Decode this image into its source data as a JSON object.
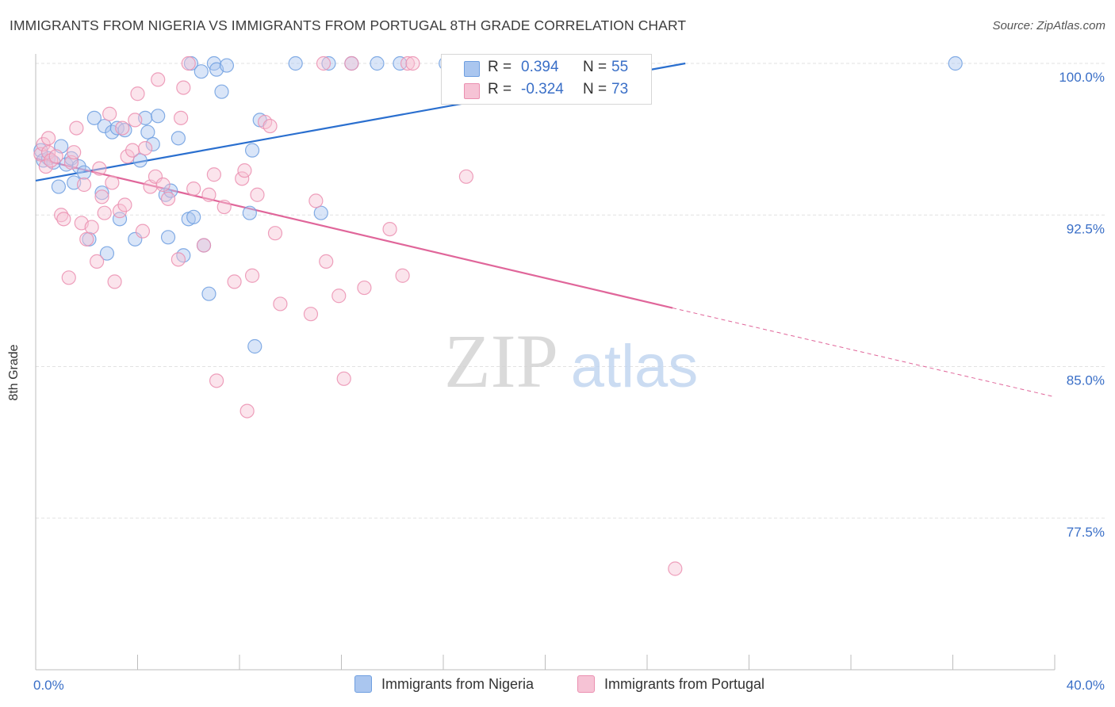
{
  "title": "IMMIGRANTS FROM NIGERIA VS IMMIGRANTS FROM PORTUGAL 8TH GRADE CORRELATION CHART",
  "source": "Source: ZipAtlas.com",
  "watermark": {
    "zip": "ZIP",
    "atlas": "atlas"
  },
  "legend": {
    "r_label": "R =",
    "n_label": "N =",
    "items": [
      {
        "r": "0.394",
        "n": "55"
      },
      {
        "r": "-0.324",
        "n": "73"
      }
    ]
  },
  "colors": {
    "nigeria": "#6f9fe0",
    "nigeria_fill": "#aac6ef",
    "nigeria_line": "#2a6fcf",
    "portugal": "#eb8fb0",
    "portugal_fill": "#f6c3d5",
    "portugal_line": "#e0669a",
    "tick_text": "#3a6fc7",
    "grid": "#e2e2e2"
  },
  "chart_data": {
    "type": "scatter",
    "title": "IMMIGRANTS FROM NIGERIA VS IMMIGRANTS FROM PORTUGAL 8TH GRADE CORRELATION CHART",
    "xlabel": "",
    "ylabel": "8th Grade",
    "xlim": [
      0,
      40
    ],
    "ylim": [
      70.5,
      101
    ],
    "x_tick_labels": [
      "0.0%",
      "40.0%"
    ],
    "y_ticks": [
      100.0,
      92.5,
      85.0,
      77.5
    ],
    "y_tick_labels": [
      "100.0%",
      "92.5%",
      "85.0%",
      "77.5%"
    ],
    "grid": true,
    "legend_position": "bottom",
    "series": [
      {
        "name": "Immigrants from Nigeria",
        "color": "#6f9fe0",
        "r": 0.394,
        "n": 55,
        "trend": {
          "x0": 0,
          "y0": 94.2,
          "x1": 25.5,
          "y1": 100.0
        },
        "points": [
          [
            0.2,
            95.7
          ],
          [
            0.3,
            95.2
          ],
          [
            0.5,
            95.3
          ],
          [
            0.7,
            95.1
          ],
          [
            0.9,
            93.9
          ],
          [
            1.0,
            95.9
          ],
          [
            1.2,
            95.0
          ],
          [
            1.4,
            95.3
          ],
          [
            1.5,
            94.1
          ],
          [
            1.7,
            94.9
          ],
          [
            1.9,
            94.6
          ],
          [
            2.1,
            91.3
          ],
          [
            2.3,
            97.3
          ],
          [
            2.6,
            93.6
          ],
          [
            2.7,
            96.9
          ],
          [
            2.8,
            90.6
          ],
          [
            3.0,
            96.6
          ],
          [
            3.2,
            96.8
          ],
          [
            3.3,
            92.3
          ],
          [
            3.5,
            96.7
          ],
          [
            3.9,
            91.3
          ],
          [
            4.1,
            95.2
          ],
          [
            4.3,
            97.3
          ],
          [
            4.4,
            96.6
          ],
          [
            4.6,
            96.0
          ],
          [
            4.8,
            97.4
          ],
          [
            5.1,
            93.5
          ],
          [
            5.2,
            91.4
          ],
          [
            5.3,
            93.7
          ],
          [
            5.6,
            96.3
          ],
          [
            5.8,
            90.5
          ],
          [
            6.0,
            92.3
          ],
          [
            6.1,
            100.0
          ],
          [
            6.2,
            92.4
          ],
          [
            6.5,
            99.6
          ],
          [
            6.6,
            91.0
          ],
          [
            6.8,
            88.6
          ],
          [
            7.0,
            100.0
          ],
          [
            7.1,
            99.7
          ],
          [
            7.3,
            98.6
          ],
          [
            7.5,
            99.9
          ],
          [
            8.4,
            92.6
          ],
          [
            8.6,
            86.0
          ],
          [
            8.8,
            97.2
          ],
          [
            8.5,
            95.7
          ],
          [
            10.2,
            100.0
          ],
          [
            11.2,
            92.6
          ],
          [
            11.5,
            100.0
          ],
          [
            12.4,
            100.0
          ],
          [
            13.4,
            100.0
          ],
          [
            14.3,
            100.0
          ],
          [
            16.1,
            100.0
          ],
          [
            17.9,
            100.0
          ],
          [
            16.8,
            100.0
          ],
          [
            36.1,
            100.0
          ]
        ]
      },
      {
        "name": "Immigrants from Portugal",
        "color": "#eb8fb0",
        "r": -0.324,
        "n": 73,
        "trend": {
          "x0": 0,
          "y0": 95.3,
          "x1": 25.0,
          "y1": 87.9
        },
        "trend_dashed": {
          "x0": 25.0,
          "y0": 87.9,
          "x1": 40.0,
          "y1": 83.5
        },
        "points": [
          [
            0.2,
            95.5
          ],
          [
            0.3,
            96.0
          ],
          [
            0.4,
            94.9
          ],
          [
            0.5,
            95.6
          ],
          [
            0.5,
            96.3
          ],
          [
            0.6,
            95.2
          ],
          [
            0.8,
            95.4
          ],
          [
            1.0,
            92.5
          ],
          [
            1.1,
            92.3
          ],
          [
            1.3,
            89.4
          ],
          [
            1.4,
            95.1
          ],
          [
            1.5,
            95.6
          ],
          [
            1.6,
            96.8
          ],
          [
            1.8,
            92.1
          ],
          [
            1.9,
            94.0
          ],
          [
            2.0,
            91.3
          ],
          [
            2.2,
            91.9
          ],
          [
            2.4,
            90.2
          ],
          [
            2.5,
            94.8
          ],
          [
            2.6,
            93.4
          ],
          [
            2.7,
            92.6
          ],
          [
            2.9,
            97.5
          ],
          [
            3.0,
            94.1
          ],
          [
            3.1,
            89.2
          ],
          [
            3.3,
            92.7
          ],
          [
            3.4,
            96.8
          ],
          [
            3.5,
            93.0
          ],
          [
            3.6,
            95.4
          ],
          [
            3.8,
            95.7
          ],
          [
            3.9,
            97.2
          ],
          [
            4.0,
            98.5
          ],
          [
            4.2,
            91.7
          ],
          [
            4.3,
            95.8
          ],
          [
            4.5,
            93.9
          ],
          [
            4.7,
            94.4
          ],
          [
            4.8,
            99.2
          ],
          [
            5.0,
            94.0
          ],
          [
            5.2,
            93.3
          ],
          [
            5.6,
            90.3
          ],
          [
            5.8,
            98.8
          ],
          [
            5.7,
            97.3
          ],
          [
            6.0,
            100.0
          ],
          [
            6.2,
            93.8
          ],
          [
            6.6,
            91.0
          ],
          [
            6.8,
            93.5
          ],
          [
            7.0,
            94.5
          ],
          [
            7.1,
            84.3
          ],
          [
            7.4,
            92.9
          ],
          [
            7.8,
            89.2
          ],
          [
            8.1,
            94.3
          ],
          [
            8.2,
            94.7
          ],
          [
            8.3,
            82.8
          ],
          [
            8.5,
            89.5
          ],
          [
            8.7,
            93.5
          ],
          [
            9.0,
            97.1
          ],
          [
            9.2,
            96.9
          ],
          [
            9.4,
            91.6
          ],
          [
            9.6,
            88.1
          ],
          [
            10.8,
            87.6
          ],
          [
            11.0,
            93.2
          ],
          [
            11.3,
            100.0
          ],
          [
            11.4,
            90.2
          ],
          [
            11.9,
            88.5
          ],
          [
            12.1,
            84.4
          ],
          [
            12.4,
            100.0
          ],
          [
            12.9,
            88.9
          ],
          [
            13.9,
            91.8
          ],
          [
            14.4,
            89.5
          ],
          [
            14.6,
            100.0
          ],
          [
            14.8,
            100.0
          ],
          [
            16.6,
            100.0
          ],
          [
            16.9,
            94.4
          ],
          [
            25.1,
            75.0
          ]
        ]
      }
    ]
  },
  "bottom_legend": [
    "Immigrants from Nigeria",
    "Immigrants from Portugal"
  ]
}
